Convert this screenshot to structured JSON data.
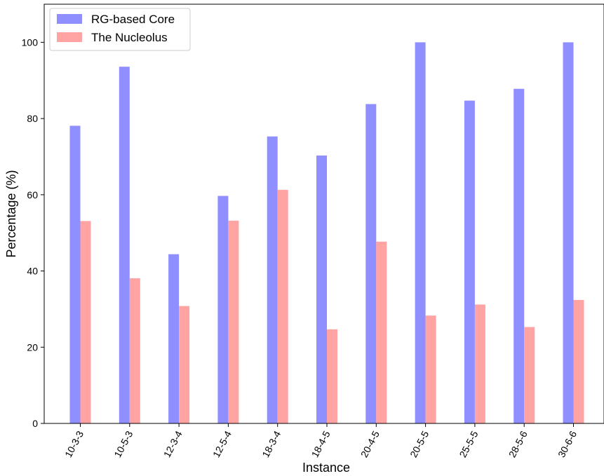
{
  "chart_data": {
    "type": "bar",
    "categories": [
      "10-3-3",
      "10-5-3",
      "12-3-4",
      "12-5-4",
      "18-3-4",
      "18-4-5",
      "20-4-5",
      "20-5-5",
      "25-5-5",
      "28-5-6",
      "30-6-6"
    ],
    "series": [
      {
        "name": "RG-based Core",
        "color": "#8f8fff",
        "values": [
          78.1,
          93.6,
          44.4,
          59.7,
          75.3,
          70.3,
          83.8,
          100,
          84.7,
          87.8,
          100
        ]
      },
      {
        "name": "The Nucleolus",
        "color": "#ffa3a3",
        "values": [
          53.1,
          38.1,
          30.8,
          53.2,
          61.3,
          24.7,
          47.7,
          28.3,
          31.2,
          25.3,
          32.4
        ]
      }
    ],
    "xlabel": "Instance",
    "ylabel": "Percentage (%)",
    "ylim": [
      0,
      110
    ],
    "yticks": [
      0,
      20,
      40,
      60,
      80,
      100
    ],
    "grid": false,
    "legend_position": "top-left"
  }
}
